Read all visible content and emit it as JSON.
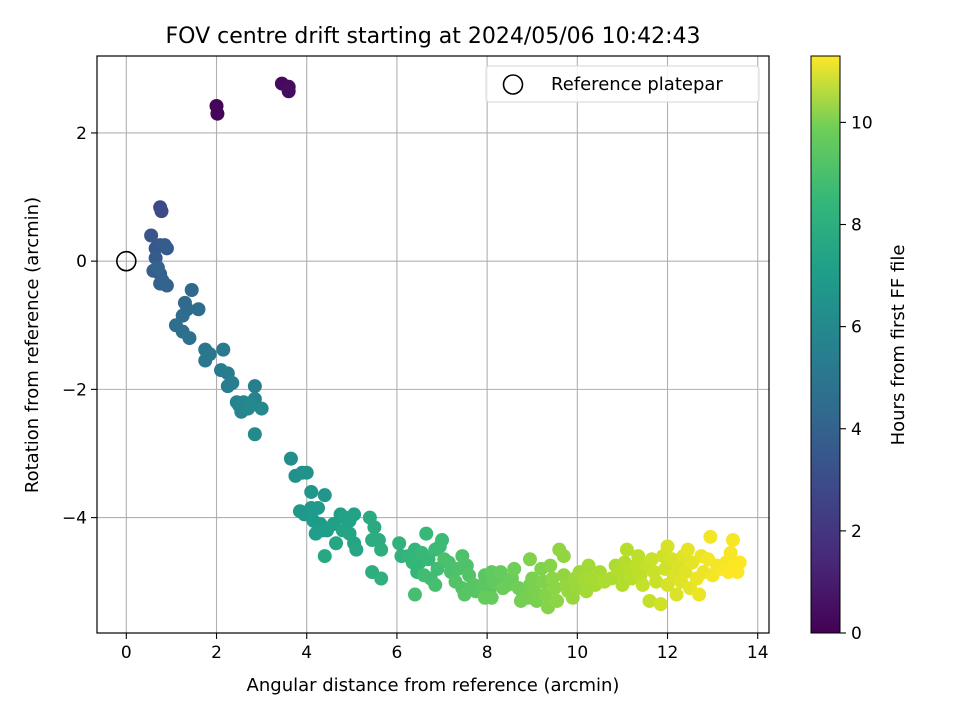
{
  "chart_data": {
    "type": "scatter",
    "title": "FOV centre drift starting at 2024/05/06 10:42:43",
    "xlabel": "Angular distance from reference (arcmin)",
    "ylabel": "Rotation from reference (arcmin)",
    "xlim": [
      -0.65,
      14.25
    ],
    "ylim": [
      -5.8,
      3.2
    ],
    "x_ticks": [
      0,
      2,
      4,
      6,
      8,
      10,
      12,
      14
    ],
    "y_ticks": [
      2,
      0,
      -2,
      -4
    ],
    "grid": true,
    "legend": {
      "placement": "top-right",
      "label": "Reference platepar"
    },
    "reference_point": {
      "x": 0,
      "y": 0
    },
    "colorbar": {
      "label": "Hours from first FF file",
      "range": [
        0,
        11.3
      ],
      "ticks": [
        0,
        2,
        4,
        6,
        8,
        10
      ],
      "colormap": "viridis"
    },
    "points": [
      {
        "x": 2.0,
        "y": 2.42,
        "h": 0.1
      },
      {
        "x": 2.02,
        "y": 2.3,
        "h": 0.15
      },
      {
        "x": 3.45,
        "y": 2.77,
        "h": 0.3
      },
      {
        "x": 3.6,
        "y": 2.72,
        "h": 0.35
      },
      {
        "x": 3.6,
        "y": 2.65,
        "h": 0.4
      },
      {
        "x": 0.75,
        "y": 0.84,
        "h": 2.5
      },
      {
        "x": 0.78,
        "y": 0.78,
        "h": 2.6
      },
      {
        "x": 0.55,
        "y": 0.4,
        "h": 3.0
      },
      {
        "x": 0.65,
        "y": 0.2,
        "h": 3.1
      },
      {
        "x": 0.75,
        "y": 0.25,
        "h": 3.2
      },
      {
        "x": 0.9,
        "y": 0.2,
        "h": 3.2
      },
      {
        "x": 0.85,
        "y": 0.25,
        "h": 3.3
      },
      {
        "x": 0.65,
        "y": 0.05,
        "h": 3.3
      },
      {
        "x": 0.6,
        "y": -0.15,
        "h": 3.4
      },
      {
        "x": 0.75,
        "y": -0.2,
        "h": 3.4
      },
      {
        "x": 0.8,
        "y": -0.3,
        "h": 3.5
      },
      {
        "x": 0.75,
        "y": -0.35,
        "h": 3.5
      },
      {
        "x": 0.9,
        "y": -0.38,
        "h": 3.6
      },
      {
        "x": 0.7,
        "y": -0.1,
        "h": 3.6
      },
      {
        "x": 1.45,
        "y": -0.45,
        "h": 3.8
      },
      {
        "x": 1.3,
        "y": -0.65,
        "h": 3.9
      },
      {
        "x": 1.35,
        "y": -0.75,
        "h": 3.9
      },
      {
        "x": 1.6,
        "y": -0.75,
        "h": 4.0
      },
      {
        "x": 1.25,
        "y": -0.85,
        "h": 4.0
      },
      {
        "x": 1.1,
        "y": -1.0,
        "h": 4.1
      },
      {
        "x": 1.25,
        "y": -1.1,
        "h": 4.1
      },
      {
        "x": 1.4,
        "y": -1.2,
        "h": 4.2
      },
      {
        "x": 1.75,
        "y": -1.38,
        "h": 4.4
      },
      {
        "x": 1.85,
        "y": -1.45,
        "h": 4.5
      },
      {
        "x": 1.75,
        "y": -1.55,
        "h": 4.5
      },
      {
        "x": 2.15,
        "y": -1.38,
        "h": 4.6
      },
      {
        "x": 2.1,
        "y": -1.7,
        "h": 4.7
      },
      {
        "x": 2.25,
        "y": -1.75,
        "h": 4.7
      },
      {
        "x": 2.25,
        "y": -1.95,
        "h": 4.8
      },
      {
        "x": 2.35,
        "y": -1.9,
        "h": 4.8
      },
      {
        "x": 2.85,
        "y": -1.95,
        "h": 4.9
      },
      {
        "x": 2.85,
        "y": -2.15,
        "h": 5.0
      },
      {
        "x": 2.45,
        "y": -2.2,
        "h": 5.0
      },
      {
        "x": 2.5,
        "y": -2.25,
        "h": 5.1
      },
      {
        "x": 2.55,
        "y": -2.35,
        "h": 5.1
      },
      {
        "x": 2.65,
        "y": -2.25,
        "h": 5.2
      },
      {
        "x": 2.7,
        "y": -2.3,
        "h": 5.2
      },
      {
        "x": 2.6,
        "y": -2.2,
        "h": 5.2
      },
      {
        "x": 2.75,
        "y": -2.25,
        "h": 5.3
      },
      {
        "x": 3.0,
        "y": -2.3,
        "h": 5.3
      },
      {
        "x": 2.85,
        "y": -2.7,
        "h": 5.4
      },
      {
        "x": 3.65,
        "y": -3.08,
        "h": 5.6
      },
      {
        "x": 3.75,
        "y": -3.35,
        "h": 5.7
      },
      {
        "x": 3.9,
        "y": -3.3,
        "h": 5.7
      },
      {
        "x": 4.0,
        "y": -3.3,
        "h": 5.8
      },
      {
        "x": 4.1,
        "y": -3.6,
        "h": 5.9
      },
      {
        "x": 4.4,
        "y": -3.65,
        "h": 5.9
      },
      {
        "x": 3.85,
        "y": -3.9,
        "h": 6.0
      },
      {
        "x": 3.95,
        "y": -3.95,
        "h": 6.0
      },
      {
        "x": 4.1,
        "y": -3.85,
        "h": 6.1
      },
      {
        "x": 4.25,
        "y": -3.85,
        "h": 6.1
      },
      {
        "x": 4.15,
        "y": -4.05,
        "h": 6.2
      },
      {
        "x": 4.3,
        "y": -4.1,
        "h": 6.2
      },
      {
        "x": 4.35,
        "y": -4.2,
        "h": 6.3
      },
      {
        "x": 4.2,
        "y": -4.25,
        "h": 6.3
      },
      {
        "x": 4.45,
        "y": -4.2,
        "h": 6.3
      },
      {
        "x": 4.6,
        "y": -4.1,
        "h": 6.4
      },
      {
        "x": 4.75,
        "y": -3.95,
        "h": 6.4
      },
      {
        "x": 4.85,
        "y": -4.0,
        "h": 6.5
      },
      {
        "x": 4.95,
        "y": -4.05,
        "h": 6.5
      },
      {
        "x": 5.05,
        "y": -3.95,
        "h": 6.5
      },
      {
        "x": 4.8,
        "y": -4.2,
        "h": 6.6
      },
      {
        "x": 4.95,
        "y": -4.25,
        "h": 6.6
      },
      {
        "x": 5.05,
        "y": -4.4,
        "h": 6.6
      },
      {
        "x": 5.1,
        "y": -4.5,
        "h": 6.7
      },
      {
        "x": 4.65,
        "y": -4.4,
        "h": 6.7
      },
      {
        "x": 4.4,
        "y": -4.6,
        "h": 6.8
      },
      {
        "x": 5.4,
        "y": -4.0,
        "h": 6.9
      },
      {
        "x": 5.5,
        "y": -4.15,
        "h": 6.9
      },
      {
        "x": 5.45,
        "y": -4.35,
        "h": 7.0
      },
      {
        "x": 5.6,
        "y": -4.35,
        "h": 7.0
      },
      {
        "x": 5.65,
        "y": -4.5,
        "h": 7.1
      },
      {
        "x": 5.45,
        "y": -4.85,
        "h": 7.1
      },
      {
        "x": 5.65,
        "y": -4.95,
        "h": 7.2
      },
      {
        "x": 6.05,
        "y": -4.4,
        "h": 7.3
      },
      {
        "x": 6.1,
        "y": -4.6,
        "h": 7.3
      },
      {
        "x": 6.25,
        "y": -4.6,
        "h": 7.4
      },
      {
        "x": 6.4,
        "y": -4.5,
        "h": 7.4
      },
      {
        "x": 6.35,
        "y": -4.7,
        "h": 7.5
      },
      {
        "x": 6.5,
        "y": -4.7,
        "h": 7.5
      },
      {
        "x": 6.45,
        "y": -4.85,
        "h": 7.5
      },
      {
        "x": 6.55,
        "y": -4.55,
        "h": 7.6
      },
      {
        "x": 6.65,
        "y": -4.25,
        "h": 7.6
      },
      {
        "x": 6.7,
        "y": -4.65,
        "h": 7.6
      },
      {
        "x": 6.85,
        "y": -4.5,
        "h": 7.7
      },
      {
        "x": 6.95,
        "y": -4.45,
        "h": 7.7
      },
      {
        "x": 7.0,
        "y": -4.35,
        "h": 7.7
      },
      {
        "x": 6.9,
        "y": -4.8,
        "h": 7.8
      },
      {
        "x": 6.75,
        "y": -4.95,
        "h": 7.8
      },
      {
        "x": 6.6,
        "y": -4.9,
        "h": 7.8
      },
      {
        "x": 6.4,
        "y": -5.2,
        "h": 7.9
      },
      {
        "x": 6.85,
        "y": -5.05,
        "h": 7.9
      },
      {
        "x": 7.05,
        "y": -4.65,
        "h": 8.0
      },
      {
        "x": 7.15,
        "y": -4.7,
        "h": 8.0
      },
      {
        "x": 7.2,
        "y": -4.85,
        "h": 8.0
      },
      {
        "x": 7.35,
        "y": -4.8,
        "h": 8.1
      },
      {
        "x": 7.45,
        "y": -4.6,
        "h": 8.1
      },
      {
        "x": 7.55,
        "y": -4.75,
        "h": 8.1
      },
      {
        "x": 7.3,
        "y": -5.0,
        "h": 8.2
      },
      {
        "x": 7.45,
        "y": -5.1,
        "h": 8.2
      },
      {
        "x": 7.6,
        "y": -4.9,
        "h": 8.2
      },
      {
        "x": 7.7,
        "y": -5.05,
        "h": 8.3
      },
      {
        "x": 7.5,
        "y": -5.2,
        "h": 8.3
      },
      {
        "x": 7.75,
        "y": -5.15,
        "h": 8.3
      },
      {
        "x": 7.9,
        "y": -5.05,
        "h": 8.4
      },
      {
        "x": 7.95,
        "y": -4.9,
        "h": 8.4
      },
      {
        "x": 8.05,
        "y": -5.15,
        "h": 8.4
      },
      {
        "x": 8.1,
        "y": -4.85,
        "h": 8.5
      },
      {
        "x": 8.15,
        "y": -5.0,
        "h": 8.5
      },
      {
        "x": 8.25,
        "y": -4.95,
        "h": 8.5
      },
      {
        "x": 8.3,
        "y": -4.85,
        "h": 8.6
      },
      {
        "x": 8.1,
        "y": -5.25,
        "h": 8.6
      },
      {
        "x": 7.95,
        "y": -5.25,
        "h": 8.6
      },
      {
        "x": 8.35,
        "y": -5.1,
        "h": 8.7
      },
      {
        "x": 8.45,
        "y": -5.05,
        "h": 8.7
      },
      {
        "x": 8.55,
        "y": -4.95,
        "h": 8.7
      },
      {
        "x": 8.6,
        "y": -4.8,
        "h": 8.8
      },
      {
        "x": 8.7,
        "y": -5.1,
        "h": 8.8
      },
      {
        "x": 8.8,
        "y": -5.2,
        "h": 8.8
      },
      {
        "x": 8.75,
        "y": -5.3,
        "h": 8.9
      },
      {
        "x": 8.9,
        "y": -5.25,
        "h": 8.9
      },
      {
        "x": 8.95,
        "y": -5.05,
        "h": 8.9
      },
      {
        "x": 9.0,
        "y": -4.95,
        "h": 9.0
      },
      {
        "x": 9.05,
        "y": -5.15,
        "h": 9.0
      },
      {
        "x": 9.1,
        "y": -5.3,
        "h": 9.0
      },
      {
        "x": 8.95,
        "y": -4.65,
        "h": 9.1
      },
      {
        "x": 9.2,
        "y": -4.8,
        "h": 9.1
      },
      {
        "x": 9.25,
        "y": -5.0,
        "h": 9.1
      },
      {
        "x": 9.3,
        "y": -5.2,
        "h": 9.2
      },
      {
        "x": 9.35,
        "y": -5.4,
        "h": 9.2
      },
      {
        "x": 9.4,
        "y": -4.75,
        "h": 9.2
      },
      {
        "x": 9.45,
        "y": -4.95,
        "h": 9.3
      },
      {
        "x": 9.5,
        "y": -5.1,
        "h": 9.3
      },
      {
        "x": 9.55,
        "y": -5.3,
        "h": 9.3
      },
      {
        "x": 9.6,
        "y": -4.5,
        "h": 9.4
      },
      {
        "x": 9.7,
        "y": -4.6,
        "h": 9.4
      },
      {
        "x": 9.7,
        "y": -4.9,
        "h": 9.4
      },
      {
        "x": 9.75,
        "y": -5.05,
        "h": 9.5
      },
      {
        "x": 9.8,
        "y": -5.15,
        "h": 9.5
      },
      {
        "x": 9.9,
        "y": -5.25,
        "h": 9.5
      },
      {
        "x": 9.95,
        "y": -4.95,
        "h": 9.6
      },
      {
        "x": 10.0,
        "y": -5.1,
        "h": 9.6
      },
      {
        "x": 10.05,
        "y": -4.85,
        "h": 9.6
      },
      {
        "x": 10.15,
        "y": -4.95,
        "h": 9.7
      },
      {
        "x": 10.2,
        "y": -5.15,
        "h": 9.7
      },
      {
        "x": 10.25,
        "y": -4.75,
        "h": 9.7
      },
      {
        "x": 10.3,
        "y": -4.95,
        "h": 9.8
      },
      {
        "x": 10.4,
        "y": -5.05,
        "h": 9.8
      },
      {
        "x": 10.5,
        "y": -4.85,
        "h": 9.8
      },
      {
        "x": 10.6,
        "y": -5.0,
        "h": 9.9
      },
      {
        "x": 10.75,
        "y": -4.95,
        "h": 9.9
      },
      {
        "x": 10.85,
        "y": -4.75,
        "h": 9.9
      },
      {
        "x": 10.95,
        "y": -4.85,
        "h": 10.0
      },
      {
        "x": 11.0,
        "y": -5.05,
        "h": 10.0
      },
      {
        "x": 11.05,
        "y": -4.7,
        "h": 10.0
      },
      {
        "x": 11.1,
        "y": -4.5,
        "h": 10.1
      },
      {
        "x": 11.15,
        "y": -4.8,
        "h": 10.1
      },
      {
        "x": 11.2,
        "y": -4.95,
        "h": 10.1
      },
      {
        "x": 11.3,
        "y": -4.75,
        "h": 10.2
      },
      {
        "x": 11.35,
        "y": -4.6,
        "h": 10.2
      },
      {
        "x": 11.4,
        "y": -4.9,
        "h": 10.2
      },
      {
        "x": 11.45,
        "y": -5.05,
        "h": 10.3
      },
      {
        "x": 11.55,
        "y": -4.75,
        "h": 10.3
      },
      {
        "x": 11.6,
        "y": -5.3,
        "h": 10.3
      },
      {
        "x": 11.65,
        "y": -4.65,
        "h": 10.4
      },
      {
        "x": 11.7,
        "y": -4.85,
        "h": 10.4
      },
      {
        "x": 11.75,
        "y": -5.0,
        "h": 10.4
      },
      {
        "x": 11.85,
        "y": -5.35,
        "h": 10.5
      },
      {
        "x": 11.9,
        "y": -4.6,
        "h": 10.5
      },
      {
        "x": 11.95,
        "y": -4.8,
        "h": 10.5
      },
      {
        "x": 12.0,
        "y": -4.45,
        "h": 10.6
      },
      {
        "x": 12.0,
        "y": -5.05,
        "h": 10.6
      },
      {
        "x": 12.1,
        "y": -4.65,
        "h": 10.6
      },
      {
        "x": 12.15,
        "y": -4.9,
        "h": 10.7
      },
      {
        "x": 12.2,
        "y": -5.2,
        "h": 10.7
      },
      {
        "x": 12.25,
        "y": -4.75,
        "h": 10.7
      },
      {
        "x": 12.3,
        "y": -5.0,
        "h": 10.8
      },
      {
        "x": 12.35,
        "y": -4.6,
        "h": 10.8
      },
      {
        "x": 12.4,
        "y": -4.85,
        "h": 10.8
      },
      {
        "x": 12.45,
        "y": -4.5,
        "h": 10.9
      },
      {
        "x": 12.5,
        "y": -5.1,
        "h": 10.9
      },
      {
        "x": 12.55,
        "y": -4.7,
        "h": 10.9
      },
      {
        "x": 12.65,
        "y": -4.95,
        "h": 11.0
      },
      {
        "x": 12.7,
        "y": -5.2,
        "h": 11.0
      },
      {
        "x": 12.75,
        "y": -4.6,
        "h": 11.0
      },
      {
        "x": 12.8,
        "y": -4.85,
        "h": 11.0
      },
      {
        "x": 12.9,
        "y": -4.65,
        "h": 11.1
      },
      {
        "x": 12.95,
        "y": -4.3,
        "h": 11.1
      },
      {
        "x": 13.0,
        "y": -4.9,
        "h": 11.1
      },
      {
        "x": 13.1,
        "y": -4.75,
        "h": 11.1
      },
      {
        "x": 13.2,
        "y": -4.8,
        "h": 11.2
      },
      {
        "x": 13.3,
        "y": -4.7,
        "h": 11.2
      },
      {
        "x": 13.4,
        "y": -4.55,
        "h": 11.2
      },
      {
        "x": 13.45,
        "y": -4.35,
        "h": 11.2
      },
      {
        "x": 13.5,
        "y": -4.75,
        "h": 11.3
      },
      {
        "x": 13.55,
        "y": -4.85,
        "h": 11.3
      },
      {
        "x": 13.6,
        "y": -4.7,
        "h": 11.3
      },
      {
        "x": 13.35,
        "y": -4.85,
        "h": 11.3
      }
    ]
  }
}
